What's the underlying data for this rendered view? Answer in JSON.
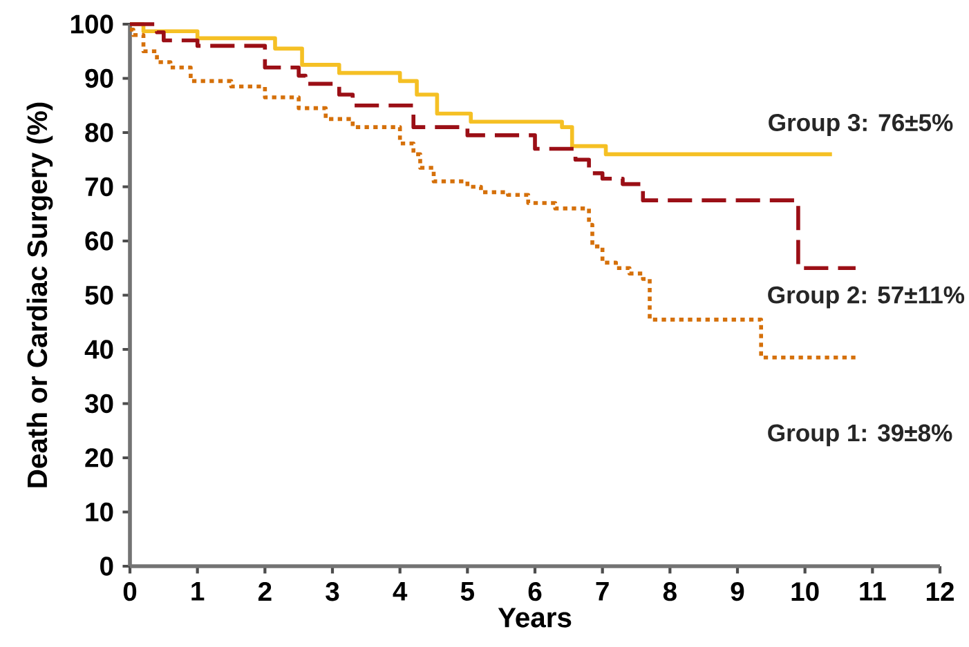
{
  "chart_data": {
    "type": "step",
    "xlabel": "Years",
    "ylabel": "Death or Cardiac Surgery (%)",
    "xlim": [
      0,
      12
    ],
    "ylim": [
      0,
      100
    ],
    "xticks": [
      0,
      1,
      2,
      3,
      4,
      5,
      6,
      7,
      8,
      9,
      10,
      11,
      12
    ],
    "yticks": [
      0,
      10,
      20,
      30,
      40,
      50,
      60,
      70,
      80,
      90,
      100
    ],
    "grid": false,
    "legend": false,
    "series": [
      {
        "name": "Group 3: 76±5%",
        "color": "#f5c024",
        "line_style": "solid",
        "x": [
          0,
          0.2,
          1.0,
          2.15,
          2.55,
          3.1,
          4.0,
          4.25,
          4.55,
          5.05,
          6.4,
          6.55,
          7.05,
          10.4
        ],
        "values": [
          100,
          98.7,
          97.4,
          95.5,
          92.5,
          91,
          89.5,
          87,
          83.5,
          82,
          81,
          77.5,
          76,
          76
        ]
      },
      {
        "name": "Group 2: 57±11%",
        "color": "#9b0f16",
        "line_style": "dashed",
        "x": [
          0,
          0.4,
          0.5,
          1.0,
          2.0,
          2.5,
          2.6,
          3.1,
          3.3,
          4.2,
          5.0,
          6.0,
          6.6,
          6.8,
          7.0,
          7.3,
          7.6,
          9.9,
          10.75
        ],
        "values": [
          100,
          98.5,
          97,
          96,
          92,
          90.5,
          89,
          87,
          85,
          81,
          79.5,
          77,
          75,
          72.5,
          71.5,
          70.5,
          67.5,
          55,
          55
        ]
      },
      {
        "name": "Group 1: 39±8%",
        "color": "#d5700a",
        "line_style": "dotted",
        "x": [
          0,
          0.05,
          0.2,
          0.4,
          0.6,
          0.9,
          1.5,
          2.0,
          2.5,
          2.9,
          3.3,
          4.0,
          4.2,
          4.3,
          4.5,
          5.0,
          5.2,
          5.6,
          5.9,
          6.3,
          6.8,
          6.85,
          7.0,
          7.2,
          7.4,
          7.6,
          7.7,
          9.35,
          10.75
        ],
        "values": [
          99,
          98,
          95,
          93,
          92,
          89.5,
          88.5,
          86.5,
          84.5,
          82.5,
          81,
          78,
          76,
          73.5,
          71,
          70,
          69,
          68.5,
          67,
          66,
          63,
          59,
          56,
          55,
          54,
          53,
          45.5,
          38.5,
          38.5
        ]
      }
    ]
  }
}
